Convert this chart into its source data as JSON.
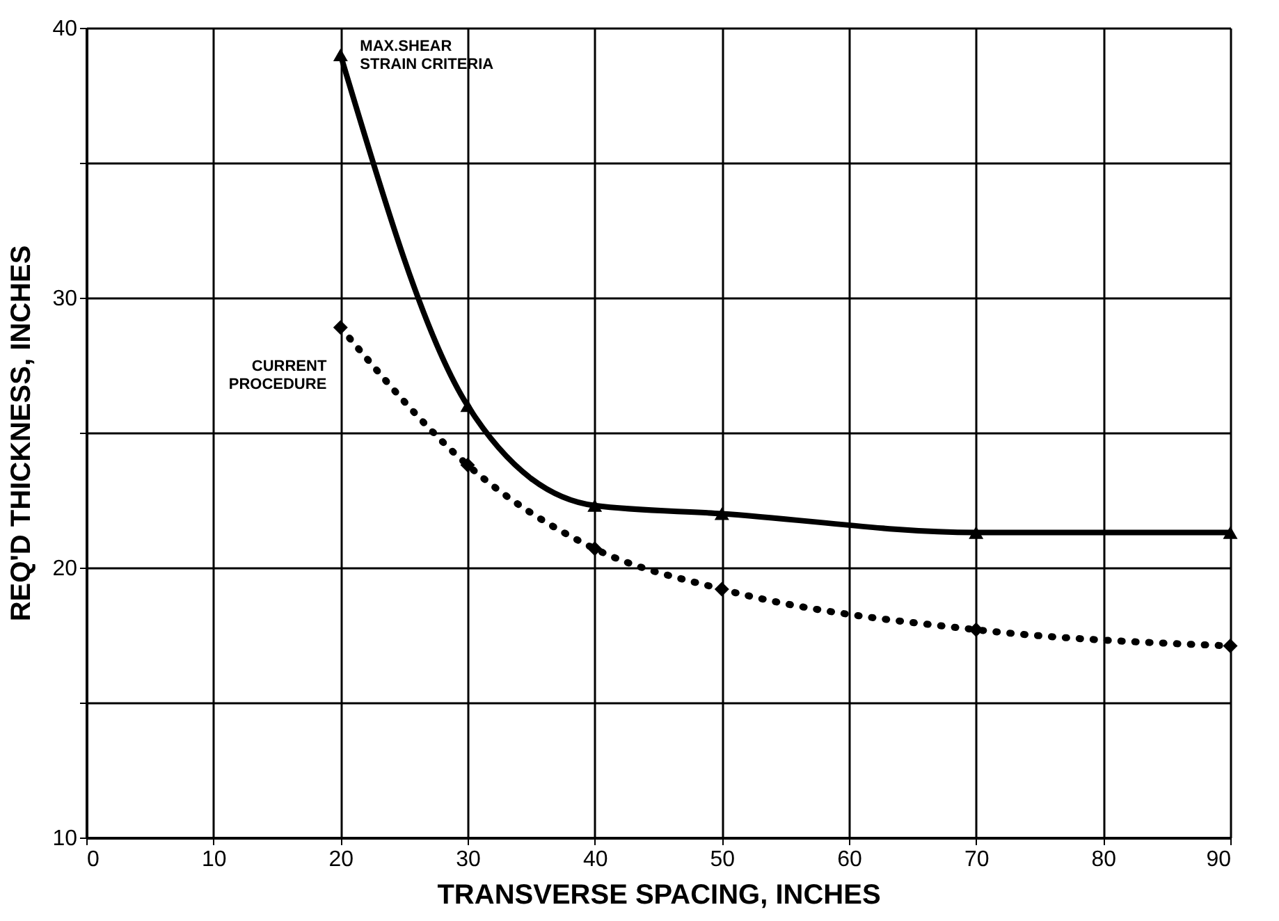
{
  "chart_data": {
    "type": "line",
    "xlabel": "TRANSVERSE SPACING, INCHES",
    "ylabel": "REQ'D THICKNESS, INCHES",
    "xlim": [
      0,
      90
    ],
    "xticks": [
      0,
      10,
      20,
      30,
      40,
      50,
      60,
      70,
      80,
      90
    ],
    "ylim": [
      10,
      40
    ],
    "yticks": [
      10,
      {
        "value": 15,
        "label": null
      },
      20,
      {
        "value": 25,
        "label": null
      },
      30,
      {
        "value": 35,
        "label": null
      },
      40
    ],
    "grid": true,
    "series": [
      {
        "name": "MAX.SHEAR\nSTRAIN CRITERIA",
        "color": "#000000",
        "marker": "triangle",
        "line_style": "solid",
        "x": [
          20,
          30,
          40,
          50,
          70,
          90
        ],
        "values": [
          39,
          26,
          22.3,
          22,
          21.3,
          21.3
        ]
      },
      {
        "name": "CURRENT\nPROCEDURE",
        "color": "#000000",
        "marker": "diamond",
        "line_style": "dotted",
        "x": [
          20,
          30,
          40,
          50,
          70,
          90
        ],
        "values": [
          28.9,
          23.8,
          20.7,
          19.2,
          17.7,
          17.1
        ]
      }
    ]
  }
}
